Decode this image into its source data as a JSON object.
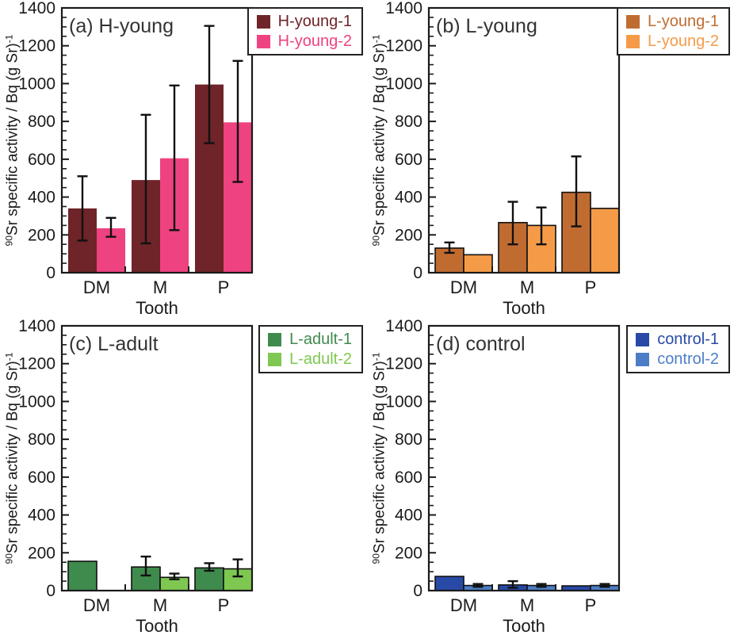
{
  "figure": {
    "background": "#ffffff",
    "axis_color": "#1a1a1a",
    "error_bar_color": "#111111",
    "title_color": "#333333"
  },
  "chart_data": [
    {
      "type": "bar",
      "panel_label": "(a)",
      "title": "H-young",
      "categories": [
        "DM",
        "M",
        "P"
      ],
      "xlabel": "Tooth",
      "ylabel": {
        "sup_pre": "90",
        "main": "Sr specific activity / Bq (g Sr)",
        "sup_post": "-1"
      },
      "ylim": [
        0,
        1400
      ],
      "ytick_step": 200,
      "yminor_step": 50,
      "grid": false,
      "legend_position": "top-right-outside",
      "bar_outline": false,
      "series": [
        {
          "name": "H-young-1",
          "color": "#6E2428",
          "values": [
            340,
            490,
            995
          ],
          "err_lo": [
            170,
            155,
            685
          ],
          "err_hi": [
            510,
            835,
            1305
          ]
        },
        {
          "name": "H-young-2",
          "color": "#EF4280",
          "values": [
            235,
            605,
            795
          ],
          "err_lo": [
            190,
            225,
            480
          ],
          "err_hi": [
            290,
            990,
            1120
          ]
        }
      ]
    },
    {
      "type": "bar",
      "panel_label": "(b)",
      "title": "L-young",
      "categories": [
        "DM",
        "M",
        "P"
      ],
      "xlabel": "Tooth",
      "ylabel": {
        "sup_pre": "90",
        "main": "Sr specific activity / Bq (g Sr)",
        "sup_post": "-1"
      },
      "ylim": [
        0,
        1400
      ],
      "ytick_step": 200,
      "yminor_step": 50,
      "grid": false,
      "legend_position": "top-right-outside",
      "bar_outline": true,
      "series": [
        {
          "name": "L-young-1",
          "color": "#C06C31",
          "values": [
            130,
            265,
            425
          ],
          "err_lo": [
            105,
            150,
            245
          ],
          "err_hi": [
            160,
            375,
            615
          ]
        },
        {
          "name": "L-young-2",
          "color": "#F59B47",
          "values": [
            95,
            250,
            340
          ],
          "err_lo": [
            null,
            150,
            null
          ],
          "err_hi": [
            null,
            345,
            null
          ]
        }
      ]
    },
    {
      "type": "bar",
      "panel_label": "(c)",
      "title": "L-adult",
      "categories": [
        "DM",
        "M",
        "P"
      ],
      "xlabel": "Tooth",
      "ylabel": {
        "sup_pre": "90",
        "main": "Sr specific activity / Bq (g Sr)",
        "sup_post": "-1"
      },
      "ylim": [
        0,
        1400
      ],
      "ytick_step": 200,
      "yminor_step": 50,
      "grid": false,
      "legend_position": "top-right-outside",
      "bar_outline": true,
      "series": [
        {
          "name": "L-adult-1",
          "color": "#3F8B4D",
          "values": [
            155,
            125,
            120
          ],
          "err_lo": [
            null,
            80,
            105
          ],
          "err_hi": [
            null,
            180,
            145
          ]
        },
        {
          "name": "L-adult-2",
          "color": "#7EC851",
          "values": [
            null,
            70,
            115
          ],
          "err_lo": [
            null,
            60,
            75
          ],
          "err_hi": [
            null,
            90,
            165
          ]
        }
      ]
    },
    {
      "type": "bar",
      "panel_label": "(d)",
      "title": "control",
      "categories": [
        "DM",
        "M",
        "P"
      ],
      "xlabel": "Tooth",
      "ylabel": {
        "sup_pre": "90",
        "main": "Sr specific activity / Bq (g Sr)",
        "sup_post": "-1"
      },
      "ylim": [
        0,
        1400
      ],
      "ytick_step": 200,
      "yminor_step": 50,
      "grid": false,
      "legend_position": "top-right-outside",
      "bar_outline": true,
      "series": [
        {
          "name": "control-1",
          "color": "#2849A6",
          "values": [
            75,
            30,
            25
          ],
          "err_lo": [
            null,
            15,
            null
          ],
          "err_hi": [
            null,
            50,
            null
          ]
        },
        {
          "name": "control-2",
          "color": "#4B7EC6",
          "values": [
            27,
            27,
            27
          ],
          "err_lo": [
            20,
            20,
            20
          ],
          "err_hi": [
            35,
            35,
            35
          ]
        }
      ]
    }
  ]
}
